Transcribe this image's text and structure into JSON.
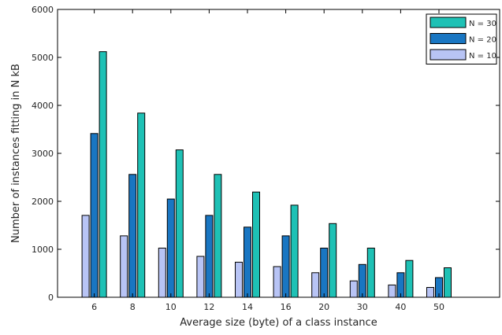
{
  "chart_data": {
    "type": "bar",
    "title": "",
    "xlabel": "Average size (byte) of a class instance",
    "ylabel": "Number of instances fitting in N kB",
    "categories": [
      "6",
      "8",
      "10",
      "12",
      "14",
      "16",
      "20",
      "30",
      "40",
      "50"
    ],
    "ylim": [
      0,
      6000
    ],
    "yticks": [
      0,
      1000,
      2000,
      3000,
      4000,
      5000,
      6000
    ],
    "grid": false,
    "legend_position": "top-right",
    "series": [
      {
        "name": "N = 10",
        "color": "#b8c4f5",
        "values": [
          1707,
          1280,
          1024,
          853,
          731,
          640,
          512,
          341,
          256,
          205
        ]
      },
      {
        "name": "N = 20",
        "color": "#1976c2",
        "values": [
          3413,
          2560,
          2048,
          1707,
          1463,
          1280,
          1024,
          683,
          512,
          410
        ]
      },
      {
        "name": "N = 30",
        "color": "#1ec1b5",
        "values": [
          5120,
          3840,
          3072,
          2560,
          2194,
          1920,
          1536,
          1024,
          768,
          614
        ]
      }
    ]
  }
}
